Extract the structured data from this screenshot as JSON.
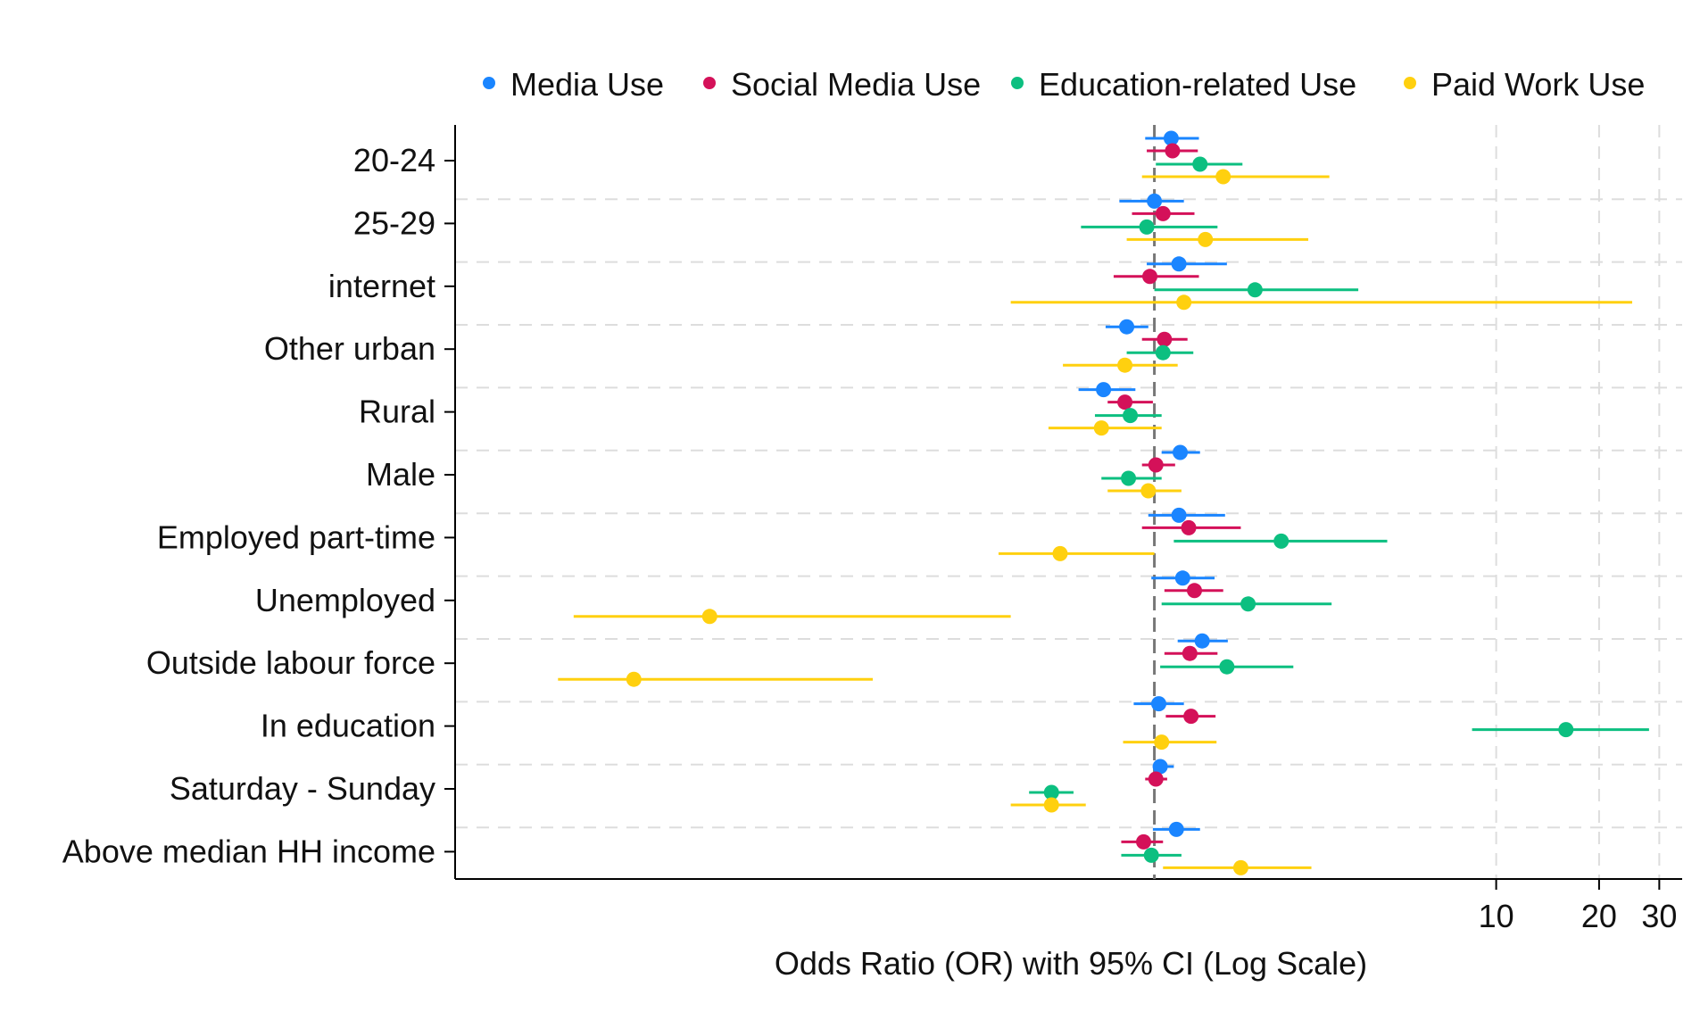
{
  "chart_data": {
    "type": "scatter",
    "subtype": "forest-plot",
    "title": "",
    "xlabel": "Odds Ratio (OR) with 95% CI (Log Scale)",
    "ylabel": "",
    "x_scale": "log",
    "x_range": [
      0.009,
      35
    ],
    "reference_line": 1,
    "x_ticks": [
      10,
      20,
      30
    ],
    "x_tick_labels": [
      "10",
      "20",
      "30"
    ],
    "grid": "dashed",
    "legend_position": "top",
    "categories": [
      "20-24",
      "25-29",
      "internet",
      "Other urban",
      "Rural",
      "Male",
      "Employed part-time",
      "Unemployed",
      "Outside labour force",
      "In education",
      "Saturday - Sunday",
      "Above median HH income"
    ],
    "series": [
      {
        "name": "Media Use",
        "color": "#1a85ff",
        "or": [
          1.12,
          1.0,
          1.18,
          0.83,
          0.71,
          1.19,
          1.18,
          1.21,
          1.38,
          1.03,
          1.04,
          1.16
        ],
        "ci_low": [
          0.94,
          0.79,
          0.95,
          0.72,
          0.6,
          1.05,
          0.96,
          0.98,
          1.17,
          0.87,
          0.99,
          0.99
        ],
        "ci_high": [
          1.35,
          1.22,
          1.63,
          0.96,
          0.88,
          1.36,
          1.61,
          1.5,
          1.64,
          1.22,
          1.14,
          1.36
        ]
      },
      {
        "name": "Social Media Use",
        "color": "#d41159",
        "or": [
          1.13,
          1.06,
          0.97,
          1.07,
          0.82,
          1.01,
          1.26,
          1.31,
          1.27,
          1.28,
          1.01,
          0.93
        ],
        "ci_low": [
          0.95,
          0.86,
          0.76,
          0.92,
          0.73,
          0.92,
          0.92,
          1.07,
          1.07,
          1.08,
          0.94,
          0.8
        ],
        "ci_high": [
          1.34,
          1.31,
          1.35,
          1.25,
          0.99,
          1.15,
          1.79,
          1.59,
          1.53,
          1.51,
          1.09,
          1.06
        ]
      },
      {
        "name": "Education-related Use",
        "color": "#0cbf80",
        "or": [
          1.36,
          0.95,
          1.97,
          1.06,
          0.85,
          0.84,
          2.35,
          1.88,
          1.63,
          16.0,
          0.5,
          0.98
        ],
        "ci_low": [
          1.01,
          0.61,
          1.0,
          0.83,
          0.67,
          0.7,
          1.14,
          1.05,
          1.04,
          8.5,
          0.43,
          0.8
        ],
        "ci_high": [
          1.81,
          1.53,
          3.95,
          1.3,
          1.05,
          1.05,
          4.8,
          3.3,
          2.55,
          28.0,
          0.58,
          1.2
        ]
      },
      {
        "name": "Paid Work Use",
        "color": "#ffd00f",
        "or": [
          1.59,
          1.41,
          1.22,
          0.82,
          0.7,
          0.96,
          0.53,
          0.05,
          0.03,
          1.05,
          0.5,
          1.79
        ],
        "ci_low": [
          0.92,
          0.83,
          0.38,
          0.54,
          0.49,
          0.73,
          0.35,
          0.02,
          0.018,
          0.81,
          0.38,
          1.06
        ],
        "ci_high": [
          3.25,
          2.82,
          25.0,
          1.17,
          1.05,
          1.2,
          1.0,
          0.38,
          0.15,
          1.52,
          0.63,
          2.88
        ]
      }
    ]
  }
}
